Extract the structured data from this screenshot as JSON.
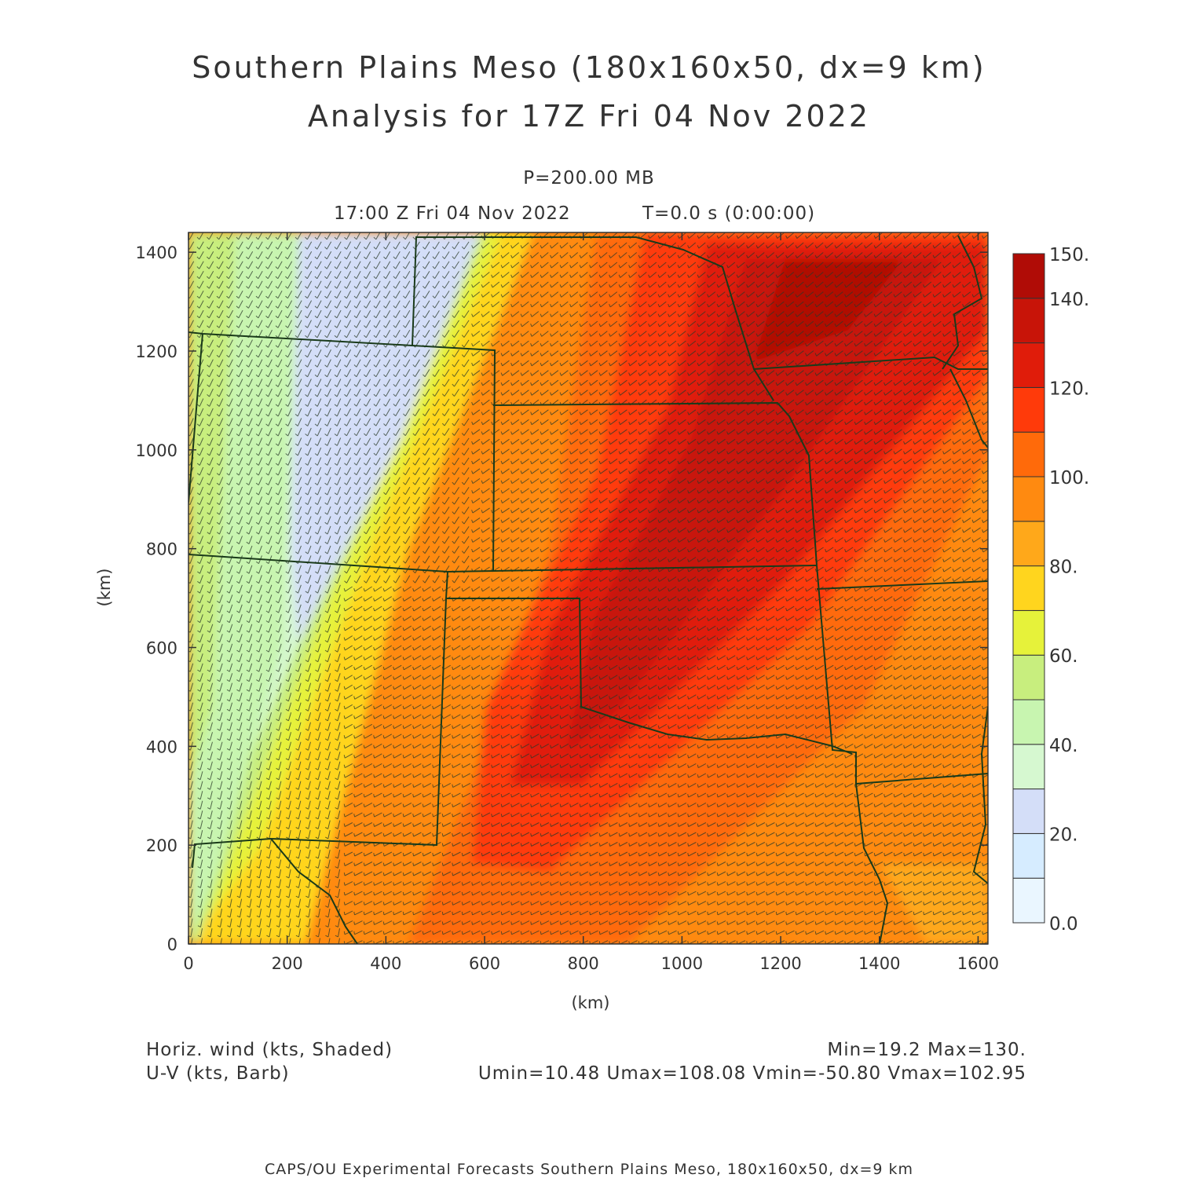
{
  "title": {
    "line1": "Southern Plains Meso (180x160x50, dx=9 km)",
    "line2": "Analysis for 17Z Fri 04 Nov 2022"
  },
  "subtitle": {
    "level": "P=200.00 MB",
    "time": "17:00 Z Fri 04 Nov 2022",
    "model_time": "T=0.0 s (0:00:00)"
  },
  "axes": {
    "x_label": "(km)",
    "y_label": "(km)",
    "x_ticks": [
      "0",
      "200",
      "400",
      "600",
      "800",
      "1000",
      "1200",
      "1400",
      "1600"
    ],
    "y_ticks": [
      "0",
      "200",
      "400",
      "600",
      "800",
      "1000",
      "1200",
      "1400"
    ],
    "x_range_km": [
      0,
      1620
    ],
    "y_range_km": [
      0,
      1440
    ]
  },
  "colorbar": {
    "labels": [
      "0.0",
      "20.",
      "40.",
      "60.",
      "80.",
      "100.",
      "120.",
      "140.",
      "150."
    ],
    "levels": [
      0,
      10,
      20,
      30,
      40,
      50,
      60,
      70,
      80,
      90,
      100,
      110,
      120,
      130,
      140,
      150
    ],
    "colors": [
      "#eaf6ff",
      "#d6ecff",
      "#d4def8",
      "#d6f8d0",
      "#c8f5b0",
      "#c8ee7e",
      "#e6f23a",
      "#ffd51e",
      "#ffa81a",
      "#ff8a10",
      "#ff6a0a",
      "#ff3a0a",
      "#e01c0a",
      "#c81408",
      "#b00c06"
    ]
  },
  "legend": {
    "field1": "Horiz. wind (kts, Shaded)",
    "field2": "U-V (kts, Barb)",
    "minmax": "Min=19.2 Max=130.",
    "uv_stats": "Umin=10.48 Umax=108.08 Vmin=-50.80 Vmax=102.95"
  },
  "credit": "CAPS/OU Experimental Forecasts  Southern Plains Meso, 180x160x50, dx=9 km",
  "map_colors": {
    "border": "#1a3a1a",
    "barb": "#2a3a2a"
  }
}
